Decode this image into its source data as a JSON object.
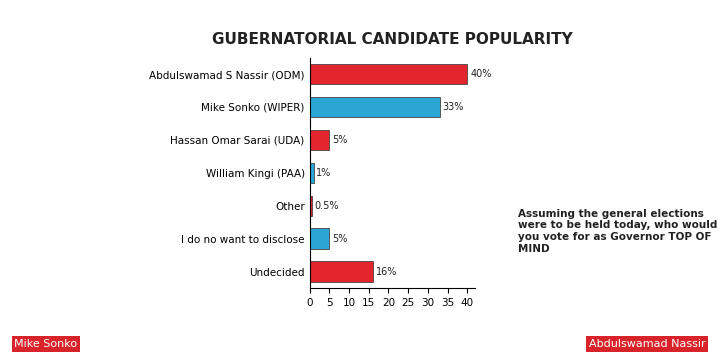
{
  "chart_data": {
    "type": "bar",
    "orientation": "horizontal",
    "title": "GUBERNATORIAL CANDIDATE POPULARITY",
    "categories": [
      "Abdulswamad S Nassir (ODM)",
      "Mike Sonko (WIPER)",
      "Hassan Omar Sarai (UDA)",
      "William Kingi (PAA)",
      "Other",
      "I do no want to disclose",
      "Undecided"
    ],
    "values": [
      40,
      33,
      5,
      1,
      0.5,
      5,
      16
    ],
    "value_labels": [
      "40%",
      "33%",
      "5%",
      "1%",
      "0.5%",
      "5%",
      "16%"
    ],
    "colors": [
      "#e3262e",
      "#2ba6d4",
      "#e3262e",
      "#2ba6d4",
      "#e3262e",
      "#2ba6d4",
      "#e3262e"
    ],
    "data_labels": true,
    "xlim": [
      0,
      42
    ],
    "xticks": [
      0,
      5,
      10,
      15,
      20,
      25,
      30,
      35,
      40
    ],
    "grid": false,
    "annotations": [
      "Assuming the general elections were to be held today, who would you vote for as Governor TOP OF MIND",
      "Mike Sonko",
      "Abdulswamad Nassir"
    ]
  }
}
